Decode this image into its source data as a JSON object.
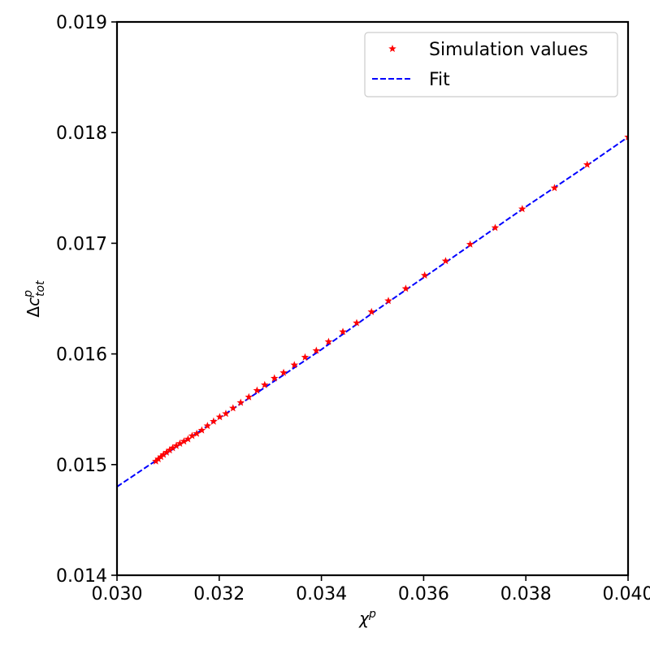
{
  "chart_data": {
    "type": "scatter",
    "title": "",
    "xlabel": {
      "base": "χ",
      "sup": "p"
    },
    "ylabel": {
      "prefix": "Δc",
      "sup": "p",
      "sub": "tot"
    },
    "xlim": [
      0.03,
      0.04
    ],
    "ylim": [
      0.014,
      0.019
    ],
    "x_ticks": [
      "0.030",
      "0.032",
      "0.034",
      "0.036",
      "0.038",
      "0.040"
    ],
    "y_ticks": [
      "0.014",
      "0.015",
      "0.016",
      "0.017",
      "0.018",
      "0.019"
    ],
    "grid": false,
    "legend_position": "top-right",
    "series": [
      {
        "name": "Simulation values",
        "marker": "star",
        "color": "#ff0000",
        "x": [
          0.03076,
          0.03081,
          0.03086,
          0.03091,
          0.03097,
          0.03103,
          0.03109,
          0.03116,
          0.03123,
          0.03131,
          0.03139,
          0.03147,
          0.03156,
          0.03166,
          0.03177,
          0.03189,
          0.03201,
          0.03213,
          0.03227,
          0.03242,
          0.03258,
          0.03274,
          0.03289,
          0.03308,
          0.03326,
          0.03347,
          0.03368,
          0.0339,
          0.03414,
          0.03442,
          0.03469,
          0.03498,
          0.03531,
          0.03565,
          0.03602,
          0.03643,
          0.03691,
          0.0374,
          0.03793,
          0.03856,
          0.0392,
          0.04
        ],
        "y": [
          0.01503,
          0.01505,
          0.01507,
          0.01509,
          0.01511,
          0.01513,
          0.01515,
          0.01517,
          0.01519,
          0.01521,
          0.01523,
          0.01526,
          0.01528,
          0.01531,
          0.01535,
          0.01539,
          0.01543,
          0.01546,
          0.01551,
          0.01556,
          0.01561,
          0.01567,
          0.01572,
          0.01578,
          0.01583,
          0.0159,
          0.01597,
          0.01603,
          0.01611,
          0.0162,
          0.01628,
          0.01638,
          0.01648,
          0.01659,
          0.01671,
          0.01684,
          0.01699,
          0.01714,
          0.01731,
          0.0175,
          0.01771,
          0.01796
        ]
      },
      {
        "name": "Fit",
        "linestyle": "dashed",
        "color": "#0000ff",
        "x": [
          0.03,
          0.031,
          0.032,
          0.033,
          0.034,
          0.035,
          0.036,
          0.037,
          0.038,
          0.039,
          0.04
        ],
        "y": [
          0.0148,
          0.01511,
          0.01542,
          0.01573,
          0.01604,
          0.01637,
          0.01669,
          0.01701,
          0.01733,
          0.01764,
          0.01796
        ]
      }
    ]
  }
}
